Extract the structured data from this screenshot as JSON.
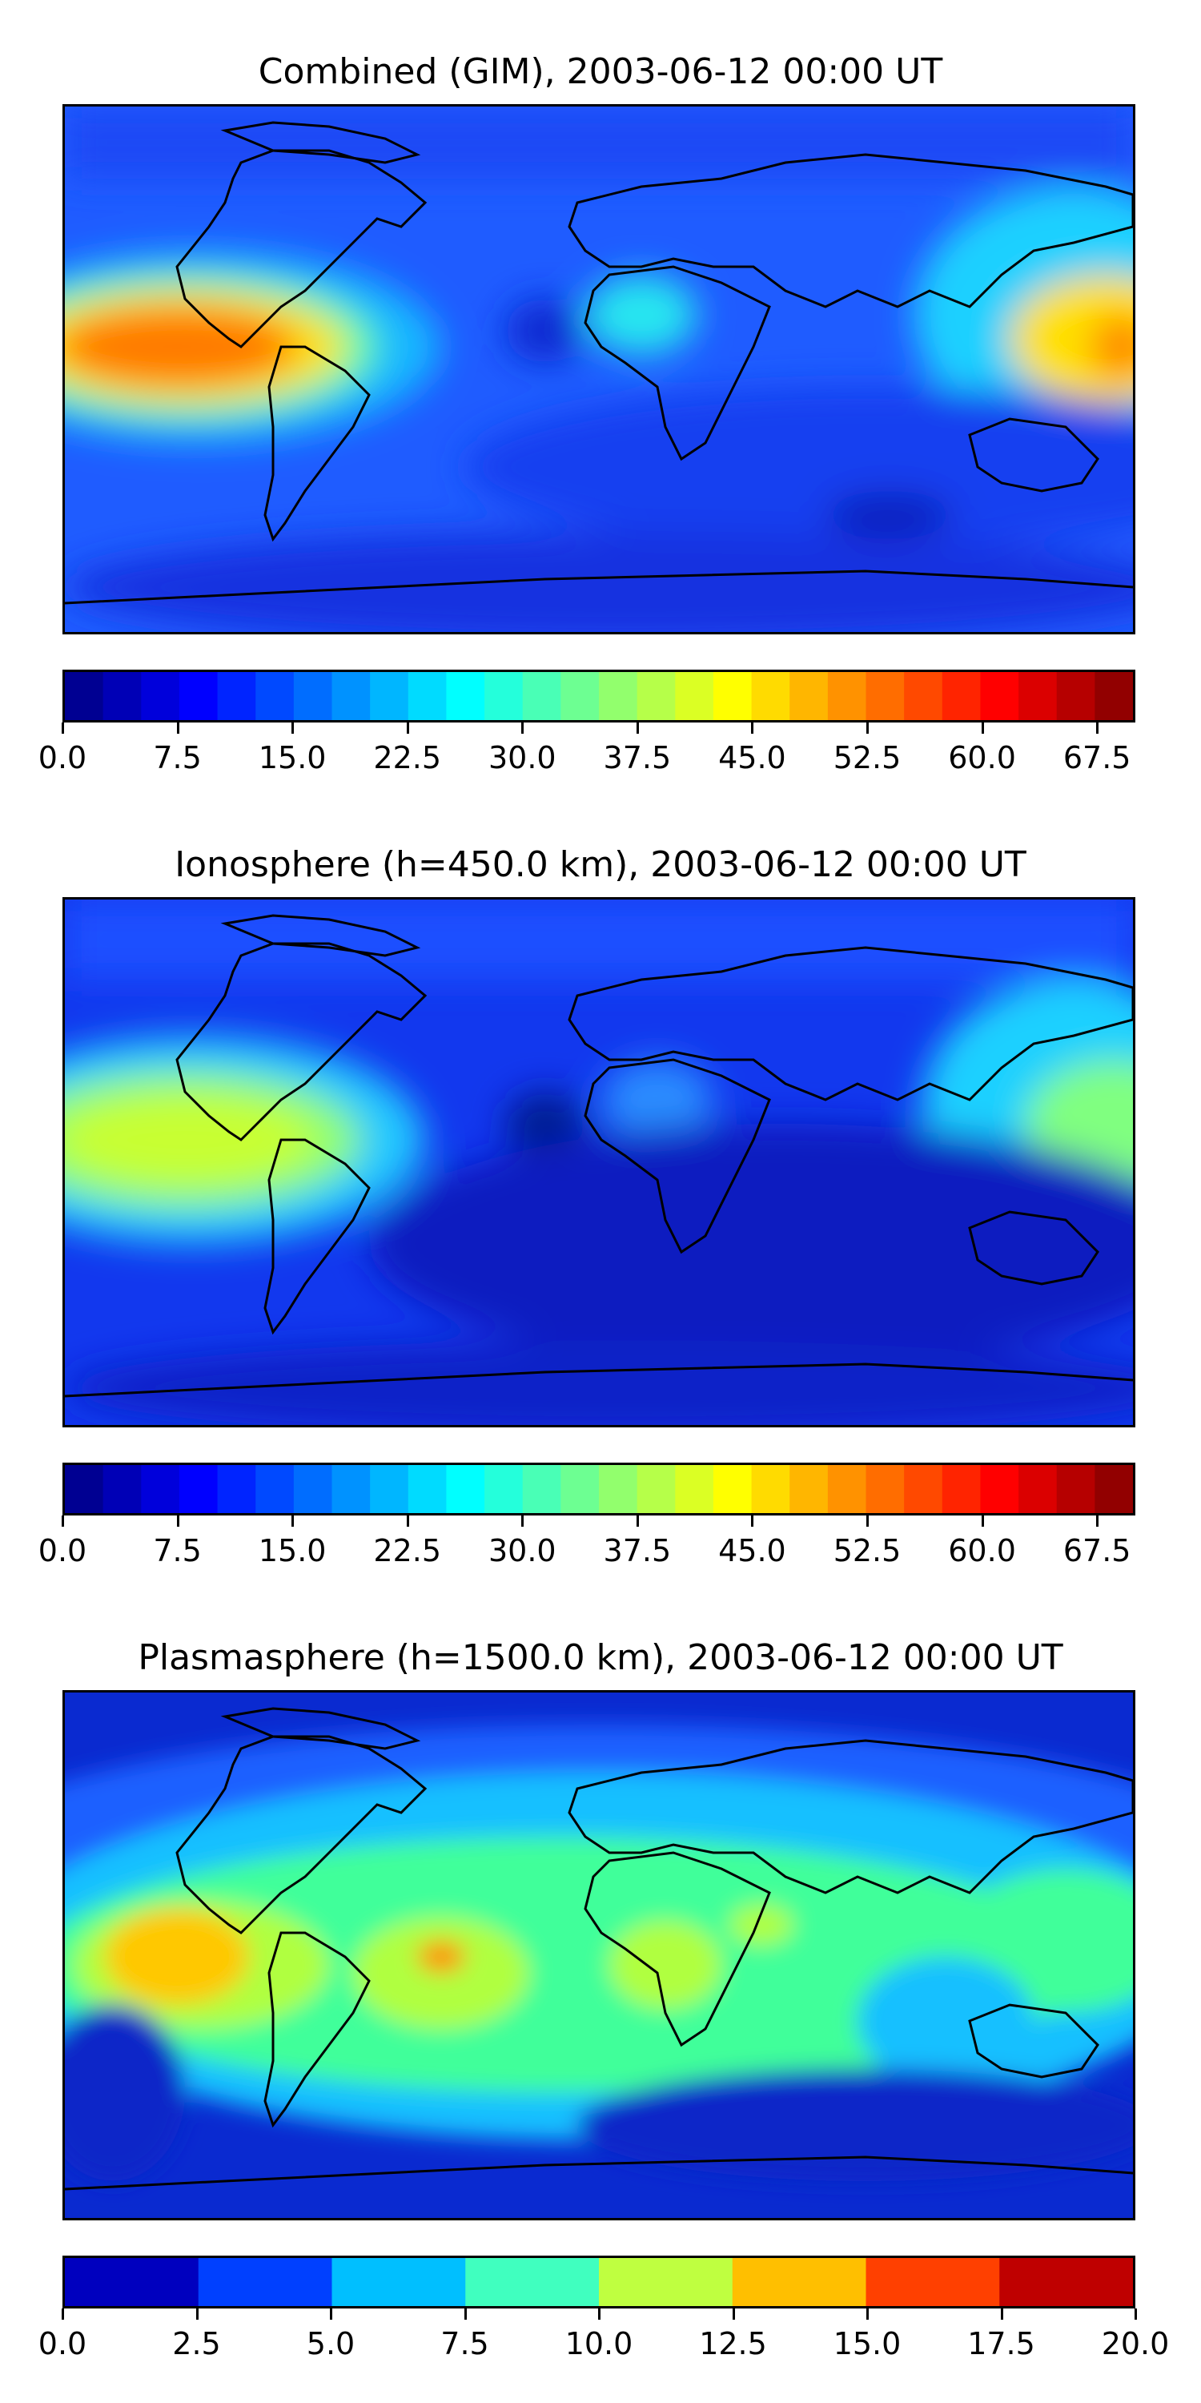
{
  "panels": [
    {
      "id": "combined",
      "title": "Combined (GIM), 2003-06-12 00:00 UT",
      "colorbar": {
        "min": 0,
        "max": 70,
        "step": 2.5,
        "tick_labels": [
          "0.0",
          "7.5",
          "15.0",
          "22.5",
          "30.0",
          "37.5",
          "45.0",
          "52.5",
          "60.0",
          "67.5"
        ],
        "tick_values": [
          0,
          7.5,
          15,
          22.5,
          30,
          37.5,
          45,
          52.5,
          60,
          67.5
        ]
      }
    },
    {
      "id": "ionosphere",
      "title": "Ionosphere  (h=450.0 km), 2003-06-12 00:00 UT",
      "colorbar": {
        "min": 0,
        "max": 70,
        "step": 2.5,
        "tick_labels": [
          "0.0",
          "7.5",
          "15.0",
          "22.5",
          "30.0",
          "37.5",
          "45.0",
          "52.5",
          "60.0",
          "67.5"
        ],
        "tick_values": [
          0,
          7.5,
          15,
          22.5,
          30,
          37.5,
          45,
          52.5,
          60,
          67.5
        ]
      }
    },
    {
      "id": "plasmasphere",
      "title": "Plasmasphere (h=1500.0 km), 2003-06-12 00:00 UT",
      "colorbar": {
        "min": 0,
        "max": 20,
        "step": 2.5,
        "tick_labels": [
          "0.0",
          "2.5",
          "5.0",
          "7.5",
          "10.0",
          "12.5",
          "15.0",
          "17.5",
          "20.0"
        ],
        "tick_values": [
          0,
          2.5,
          5,
          7.5,
          10,
          12.5,
          15,
          17.5,
          20
        ]
      }
    }
  ],
  "colors": {
    "ocean_base_combined": "#1f55ff",
    "ocean_base_ionosphere": "#1030ee",
    "ocean_base_plasmasphere": "#0a2ad8",
    "coastline": "#000000"
  }
}
